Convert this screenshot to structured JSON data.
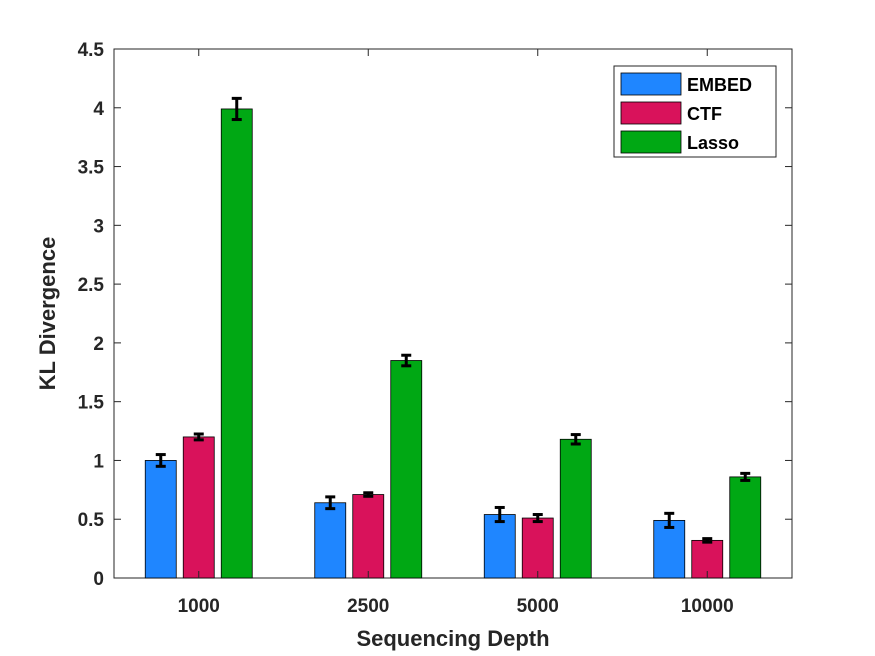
{
  "chart_data": {
    "type": "bar",
    "categories": [
      "1000",
      "2500",
      "5000",
      "10000"
    ],
    "series": [
      {
        "name": "EMBED",
        "color": "#1f86ff",
        "values": [
          1.0,
          0.64,
          0.54,
          0.49
        ],
        "errors": [
          0.05,
          0.05,
          0.06,
          0.06
        ]
      },
      {
        "name": "CTF",
        "color": "#d9125b",
        "values": [
          1.2,
          0.71,
          0.51,
          0.32
        ],
        "errors": [
          0.025,
          0.015,
          0.03,
          0.015
        ]
      },
      {
        "name": "Lasso",
        "color": "#00a814",
        "values": [
          3.99,
          1.85,
          1.18,
          0.86
        ],
        "errors": [
          0.09,
          0.045,
          0.04,
          0.03
        ]
      }
    ],
    "xlabel": "Sequencing Depth",
    "ylabel": "KL Divergence",
    "ylim": [
      0,
      4.5
    ],
    "yticks": [
      "0",
      "0.5",
      "1",
      "1.5",
      "2",
      "2.5",
      "3",
      "3.5",
      "4",
      "4.5"
    ],
    "grid": false,
    "legend_position": "top-right",
    "error_bars": true
  }
}
